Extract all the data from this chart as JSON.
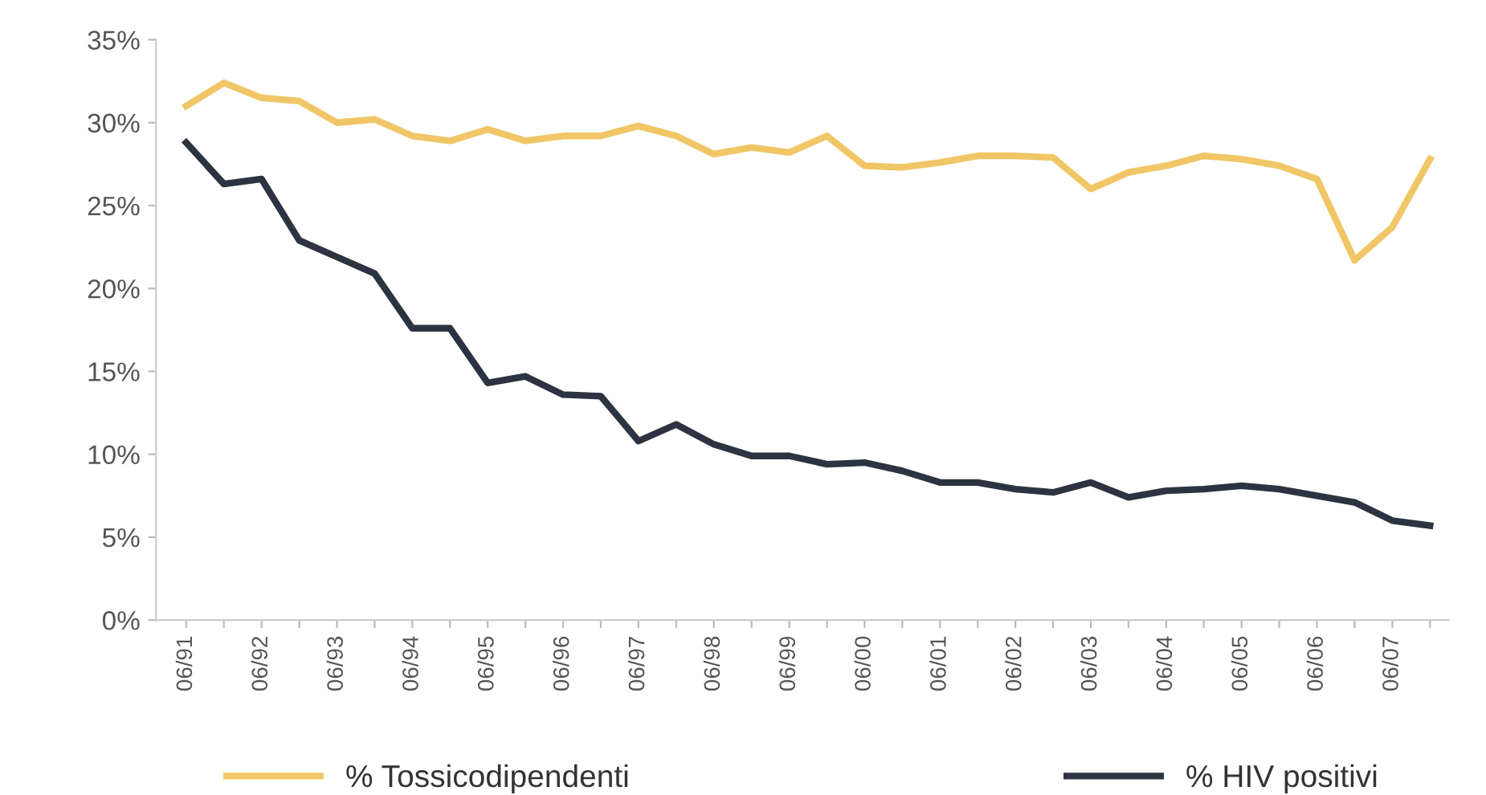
{
  "chart_data": {
    "type": "line",
    "categories": [
      "06/91",
      null,
      "06/92",
      null,
      "06/93",
      null,
      "06/94",
      null,
      "06/95",
      null,
      "06/96",
      null,
      "06/97",
      null,
      "06/98",
      null,
      "06/99",
      null,
      "06/00",
      null,
      "06/01",
      null,
      "06/02",
      null,
      "06/03",
      null,
      "06/04",
      null,
      "06/05",
      null,
      "06/06",
      null,
      "06/07",
      null
    ],
    "series": [
      {
        "name": "% Tossicodipendenti",
        "color": "#f0c666",
        "values": [
          31.0,
          32.4,
          31.5,
          31.3,
          30.0,
          30.2,
          29.2,
          28.9,
          29.6,
          28.9,
          29.2,
          29.2,
          29.8,
          29.2,
          28.1,
          28.5,
          28.2,
          29.2,
          27.4,
          27.3,
          27.6,
          28.0,
          28.0,
          27.9,
          26.0,
          27.0,
          27.4,
          28.0,
          27.8,
          27.4,
          26.6,
          21.7,
          23.7,
          27.8
        ]
      },
      {
        "name": "% HIV positivi",
        "color": "#2b3440",
        "values": [
          28.8,
          26.3,
          26.6,
          22.9,
          21.9,
          20.9,
          17.6,
          17.6,
          14.3,
          14.7,
          13.6,
          13.5,
          10.8,
          11.8,
          10.6,
          9.9,
          9.9,
          9.4,
          9.5,
          9.0,
          8.3,
          8.3,
          7.9,
          7.7,
          8.3,
          7.4,
          7.8,
          7.9,
          8.1,
          7.9,
          7.5,
          7.1,
          6.0,
          5.7
        ]
      }
    ],
    "ylim": [
      0,
      35
    ],
    "yticks": [
      {
        "value": 0,
        "label": "0%"
      },
      {
        "value": 5,
        "label": "5%"
      },
      {
        "value": 10,
        "label": "10%"
      },
      {
        "value": 15,
        "label": "15%"
      },
      {
        "value": 20,
        "label": "20%"
      },
      {
        "value": 25,
        "label": "25%"
      },
      {
        "value": 30,
        "label": "30%"
      },
      {
        "value": 35,
        "label": "35%"
      }
    ],
    "grid": false,
    "legend": "bottom",
    "marker": "none",
    "line_style": "solid"
  }
}
